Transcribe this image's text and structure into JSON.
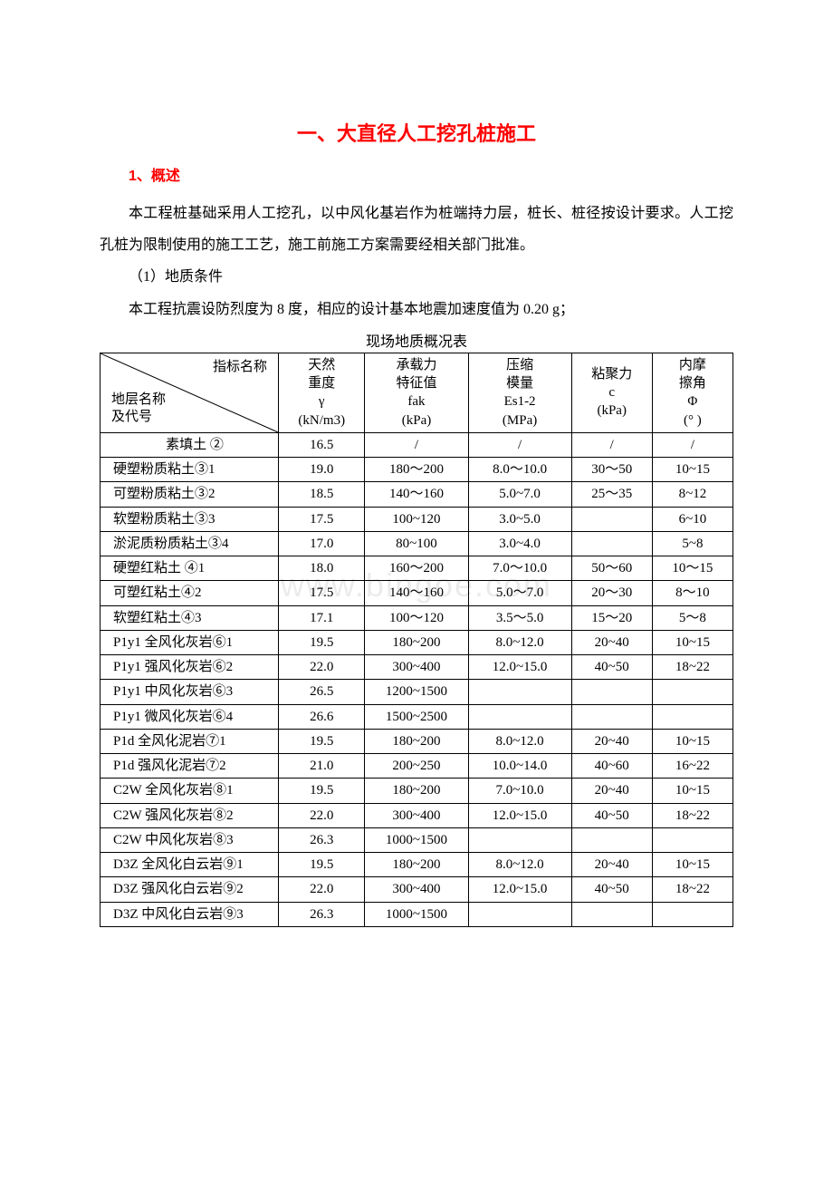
{
  "title": "一、大直径人工挖孔桩施工",
  "subtitle": "1、概述",
  "para1": "本工程桩基础采用人工挖孔，以中风化基岩作为桩端持力层，桩长、桩径按设计要求。人工挖孔桩为限制使用的施工工艺，施工前施工方案需要经相关部门批准。",
  "section1": "（1）地质条件",
  "para2": "本工程抗震设防烈度为 8 度，相应的设计基本地震加速度值为 0.20 g；",
  "tableCaption": "现场地质概况表",
  "diagTop": "指标名称",
  "diagBot1": "地层名称",
  "diagBot2": "及代号",
  "headers": [
    [
      "天然",
      "重度",
      "γ",
      "(kN/m3)"
    ],
    [
      "承载力",
      "特征值",
      "fak",
      "(kPa)"
    ],
    [
      "压缩",
      "模量",
      "Es1-2",
      "(MPa)"
    ],
    [
      "粘聚力",
      "c",
      "(kPa)"
    ],
    [
      "内摩",
      "擦角",
      "Φ",
      "(° )"
    ]
  ],
  "rows": [
    [
      "素填土 ②",
      "16.5",
      "/",
      "/",
      "/",
      "/"
    ],
    [
      "硬塑粉质粘土③1",
      "19.0",
      "180～200",
      "8.0～10.0",
      "30～50",
      "10~15"
    ],
    [
      "可塑粉质粘土③2",
      "18.5",
      "140～160",
      "5.0~7.0",
      "25～35",
      "8~12"
    ],
    [
      "软塑粉质粘土③3",
      "17.5",
      "100~120",
      "3.0~5.0",
      "",
      "6~10"
    ],
    [
      "淤泥质粉质粘土③4",
      "17.0",
      "80~100",
      "3.0~4.0",
      "",
      "5~8"
    ],
    [
      "硬塑红粘土 ④1",
      "18.0",
      "160～200",
      "7.0～10.0",
      "50～60",
      "10～15"
    ],
    [
      "可塑红粘土④2",
      "17.5",
      "140～160",
      "5.0～7.0",
      "20～30",
      "8～10"
    ],
    [
      "软塑红粘土④3",
      "17.1",
      "100～120",
      "3.5～5.0",
      "15～20",
      "5～8"
    ],
    [
      "P1y1 全风化灰岩⑥1",
      "19.5",
      "180~200",
      "8.0~12.0",
      "20~40",
      "10~15"
    ],
    [
      "P1y1 强风化灰岩⑥2",
      "22.0",
      "300~400",
      "12.0~15.0",
      "40~50",
      "18~22"
    ],
    [
      "P1y1 中风化灰岩⑥3",
      "26.5",
      "1200~1500",
      "",
      "",
      ""
    ],
    [
      "P1y1 微风化灰岩⑥4",
      "26.6",
      "1500~2500",
      "",
      "",
      ""
    ],
    [
      "P1d 全风化泥岩⑦1",
      "19.5",
      "180~200",
      "8.0~12.0",
      "20~40",
      "10~15"
    ],
    [
      "P1d 强风化泥岩⑦2",
      "21.0",
      "200~250",
      "10.0~14.0",
      "40~60",
      "16~22"
    ],
    [
      "C2W 全风化灰岩⑧1",
      "19.5",
      "180~200",
      "7.0~10.0",
      "20~40",
      "10~15"
    ],
    [
      "C2W 强风化灰岩⑧2",
      "22.0",
      "300~400",
      "12.0~15.0",
      "40~50",
      "18~22"
    ],
    [
      "C2W 中风化灰岩⑧3",
      "26.3",
      "1000~1500",
      "",
      "",
      ""
    ],
    [
      "D3Z 全风化白云岩⑨1",
      "19.5",
      "180~200",
      "8.0~12.0",
      "20~40",
      "10~15"
    ],
    [
      "D3Z 强风化白云岩⑨2",
      "22.0",
      "300~400",
      "12.0~15.0",
      "40~50",
      "18~22"
    ],
    [
      "D3Z 中风化白云岩⑨3",
      "26.3",
      "1000~1500",
      "",
      "",
      ""
    ]
  ],
  "watermark": "www.bingoe.com",
  "columnWidths": [
    "190px",
    "92px",
    "110px",
    "110px",
    "86px",
    "86px"
  ],
  "centeredRows": [
    0
  ]
}
